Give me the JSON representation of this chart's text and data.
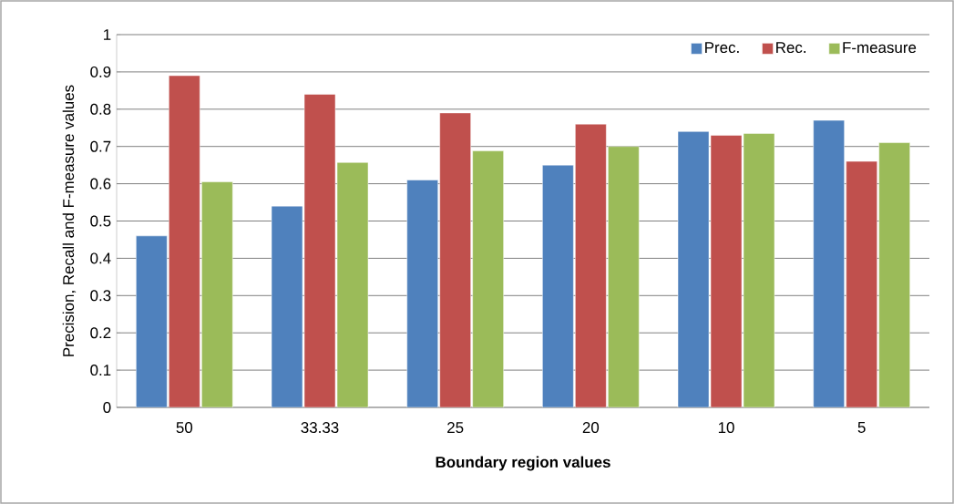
{
  "chart_data": {
    "type": "bar",
    "xlabel": "Boundary region values",
    "ylabel": "Precision, Recall and F-measure values",
    "categories": [
      "50",
      "33.33",
      "25",
      "20",
      "10",
      "5"
    ],
    "series": [
      {
        "name": "Prec.",
        "color": "#4f81bd",
        "values": [
          0.46,
          0.54,
          0.61,
          0.65,
          0.74,
          0.77
        ]
      },
      {
        "name": "Rec.",
        "color": "#c0504d",
        "values": [
          0.89,
          0.84,
          0.79,
          0.76,
          0.73,
          0.66
        ]
      },
      {
        "name": "F-measure",
        "color": "#9bbb59",
        "values": [
          0.605,
          0.657,
          0.688,
          0.7,
          0.735,
          0.71
        ]
      }
    ],
    "ylim": [
      0,
      1
    ],
    "yticks": [
      0,
      0.1,
      0.2,
      0.3,
      0.4,
      0.5,
      0.6,
      0.7,
      0.8,
      0.9,
      1
    ],
    "grid": "y",
    "legend": "top right"
  }
}
